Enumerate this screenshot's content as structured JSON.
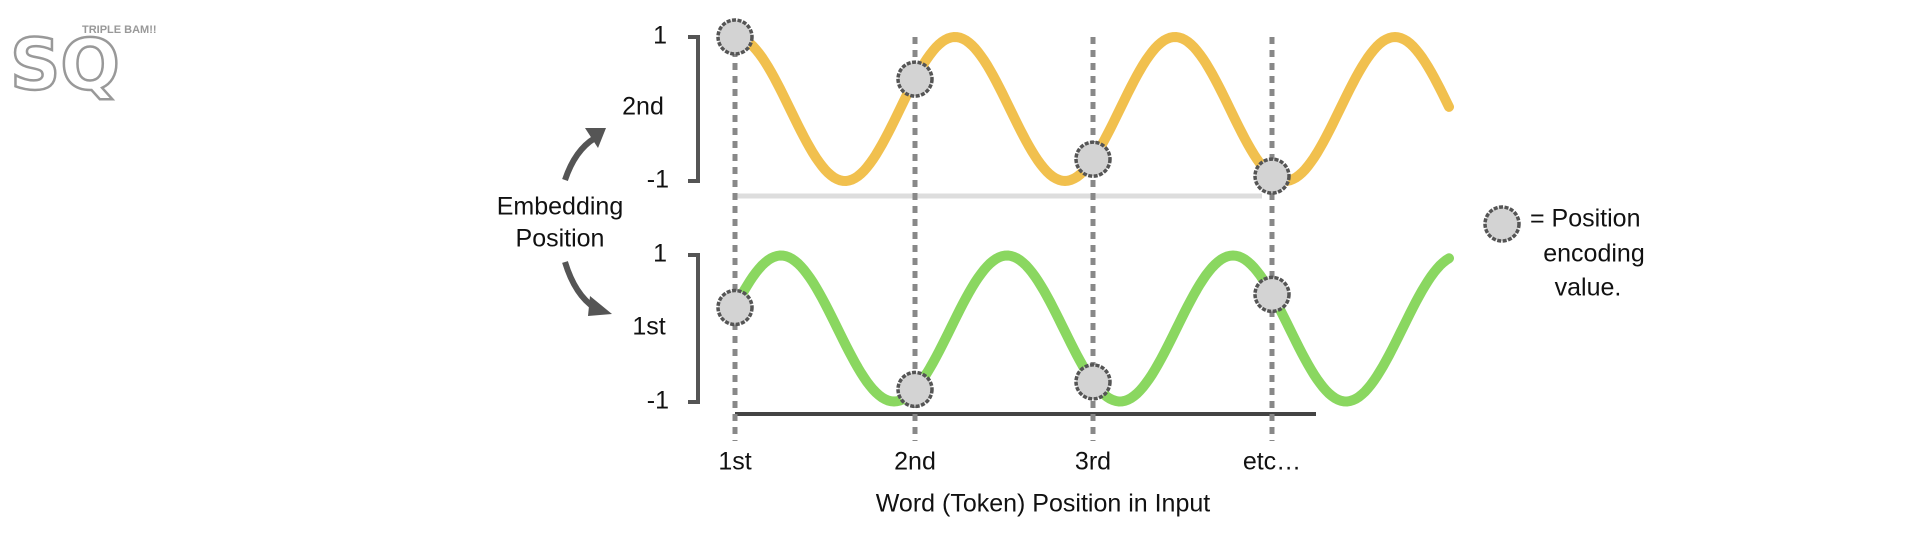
{
  "logo": {
    "letters": "SQ",
    "tagline": "TRIPLE BAM!!"
  },
  "y_axis": {
    "title_line1": "Embedding",
    "title_line2": "Position",
    "top_label": "2nd",
    "bottom_label": "1st",
    "top_max": "1",
    "top_min": "-1",
    "bottom_max": "1",
    "bottom_min": "-1"
  },
  "x_axis": {
    "title": "Word (Token) Position in Input",
    "labels": [
      "1st",
      "2nd",
      "3rd",
      "etc…"
    ]
  },
  "legend": {
    "line1": "= Position",
    "line2": "encoding",
    "line3": "value."
  }
}
